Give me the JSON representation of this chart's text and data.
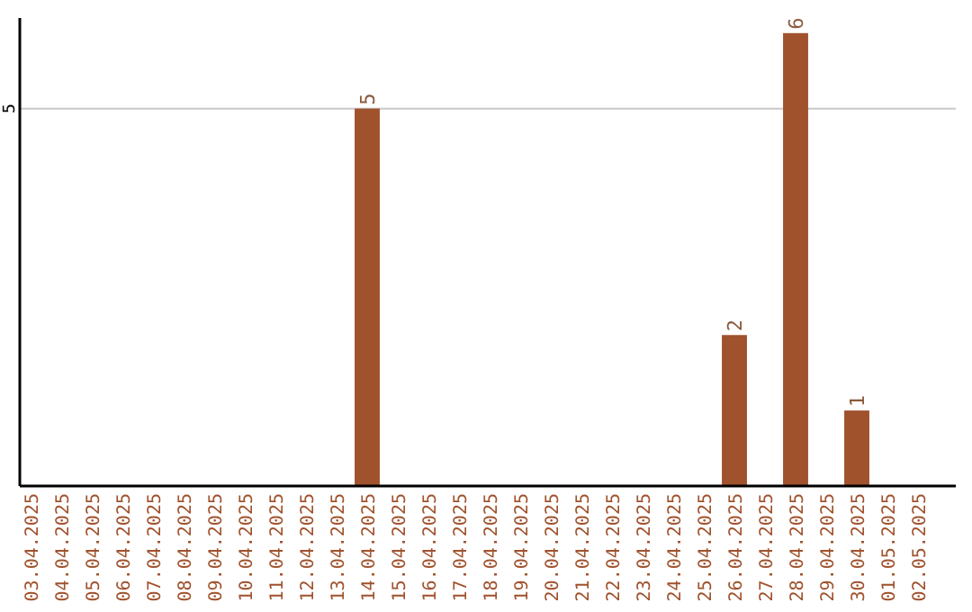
{
  "chart_data": {
    "type": "bar",
    "categories": [
      "03.04.2025",
      "04.04.2025",
      "05.04.2025",
      "06.04.2025",
      "07.04.2025",
      "08.04.2025",
      "09.04.2025",
      "10.04.2025",
      "11.04.2025",
      "12.04.2025",
      "13.04.2025",
      "14.04.2025",
      "15.04.2025",
      "16.04.2025",
      "17.04.2025",
      "18.04.2025",
      "19.04.2025",
      "20.04.2025",
      "21.04.2025",
      "22.04.2025",
      "23.04.2025",
      "24.04.2025",
      "25.04.2025",
      "26.04.2025",
      "27.04.2025",
      "28.04.2025",
      "29.04.2025",
      "30.04.2025",
      "01.05.2025",
      "02.05.2025"
    ],
    "values": [
      0,
      0,
      0,
      0,
      0,
      0,
      0,
      0,
      0,
      0,
      0,
      5,
      0,
      0,
      0,
      0,
      0,
      0,
      0,
      0,
      0,
      0,
      0,
      2,
      0,
      6,
      0,
      1,
      0,
      0
    ],
    "value_labels": [
      null,
      null,
      null,
      null,
      null,
      null,
      null,
      null,
      null,
      null,
      null,
      "5",
      null,
      null,
      null,
      null,
      null,
      null,
      null,
      null,
      null,
      null,
      null,
      "2",
      null,
      "6",
      null,
      "1",
      null,
      null
    ],
    "color": "#a0522d",
    "ylim": [
      0,
      6.2
    ],
    "yticks": [
      5
    ],
    "grid": "y"
  }
}
